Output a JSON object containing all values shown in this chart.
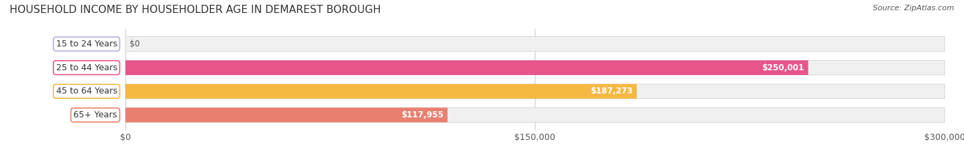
{
  "title": "HOUSEHOLD INCOME BY HOUSEHOLDER AGE IN DEMAREST BOROUGH",
  "source": "Source: ZipAtlas.com",
  "categories": [
    "15 to 24 Years",
    "25 to 44 Years",
    "45 to 64 Years",
    "65+ Years"
  ],
  "values": [
    0,
    250001,
    187273,
    117955
  ],
  "bar_colors": [
    "#b0b0e0",
    "#e8558a",
    "#f5b942",
    "#e88070"
  ],
  "bar_bg_color": "#f0f0f0",
  "label_colors": [
    "#b0b0e0",
    "#e8558a",
    "#f5b942",
    "#e88070"
  ],
  "xlim": [
    0,
    300000
  ],
  "xticks": [
    0,
    150000,
    300000
  ],
  "xtick_labels": [
    "$0",
    "$150,000",
    "$300,000"
  ],
  "value_labels": [
    "$0",
    "$250,001",
    "$187,273",
    "$117,955"
  ],
  "title_fontsize": 11,
  "tick_fontsize": 9,
  "bar_label_fontsize": 8.5,
  "category_fontsize": 9,
  "background_color": "#ffffff"
}
